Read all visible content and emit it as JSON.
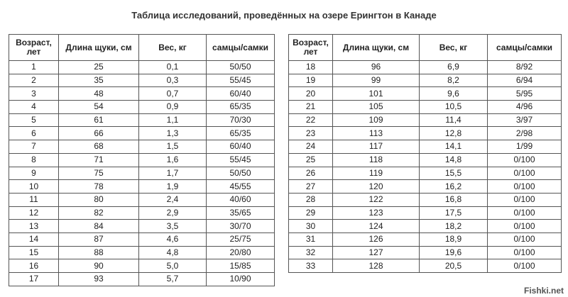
{
  "title": "Таблица исследований, проведённых на озере Ерингтон в Канаде",
  "left_table": {
    "header": [
      "Возраст, лет",
      "Длина щуки, см",
      "Вес, кг",
      "самцы/самки"
    ],
    "rows": [
      [
        "1",
        "25",
        "0,1",
        "50/50"
      ],
      [
        "2",
        "35",
        "0,3",
        "55/45"
      ],
      [
        "3",
        "48",
        "0,7",
        "60/40"
      ],
      [
        "4",
        "54",
        "0,9",
        "65/35"
      ],
      [
        "5",
        "61",
        "1,1",
        "70/30"
      ],
      [
        "6",
        "66",
        "1,3",
        "65/35"
      ],
      [
        "7",
        "68",
        "1,5",
        "60/40"
      ],
      [
        "8",
        "71",
        "1,6",
        "55/45"
      ],
      [
        "9",
        "75",
        "1,7",
        "50/50"
      ],
      [
        "10",
        "78",
        "1,9",
        "45/55"
      ],
      [
        "11",
        "80",
        "2,4",
        "40/60"
      ],
      [
        "12",
        "82",
        "2,9",
        "35/65"
      ],
      [
        "13",
        "84",
        "3,5",
        "30/70"
      ],
      [
        "14",
        "87",
        "4,6",
        "25/75"
      ],
      [
        "15",
        "88",
        "4,8",
        "20/80"
      ],
      [
        "16",
        "90",
        "5,0",
        "15/85"
      ],
      [
        "17",
        "93",
        "5,7",
        "10/90"
      ]
    ]
  },
  "right_table": {
    "header": [
      "Возраст, лет",
      "Длина щуки, см",
      "Вес, кг",
      "самцы/самки"
    ],
    "rows": [
      [
        "18",
        "96",
        "6,9",
        "8/92"
      ],
      [
        "19",
        "99",
        "8,2",
        "6/94"
      ],
      [
        "20",
        "101",
        "9,6",
        "5/95"
      ],
      [
        "21",
        "105",
        "10,5",
        "4/96"
      ],
      [
        "22",
        "109",
        "11,4",
        "3/97"
      ],
      [
        "23",
        "113",
        "12,8",
        "2/98"
      ],
      [
        "24",
        "117",
        "14,1",
        "1/99"
      ],
      [
        "25",
        "118",
        "14,8",
        "0/100"
      ],
      [
        "26",
        "119",
        "15,5",
        "0/100"
      ],
      [
        "27",
        "120",
        "16,2",
        "0/100"
      ],
      [
        "28",
        "122",
        "16,8",
        "0/100"
      ],
      [
        "29",
        "123",
        "17,5",
        "0/100"
      ],
      [
        "30",
        "124",
        "18,2",
        "0/100"
      ],
      [
        "31",
        "126",
        "18,9",
        "0/100"
      ],
      [
        "32",
        "127",
        "19,6",
        "0/100"
      ],
      [
        "33",
        "128",
        "20,5",
        "0/100"
      ]
    ]
  },
  "watermark": "Fishki.net"
}
